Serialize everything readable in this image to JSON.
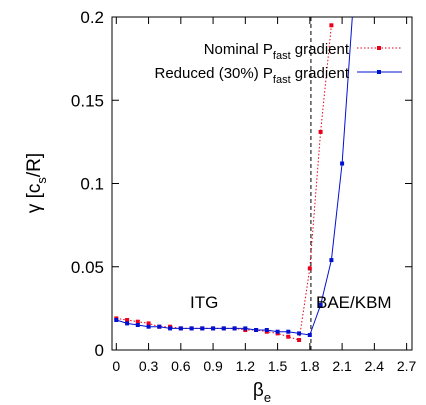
{
  "chart_data": {
    "type": "line",
    "x_ticks": [
      "0",
      "0.3",
      "0.6",
      "0.9",
      "1.2",
      "1.5",
      "1.8",
      "2.1",
      "2.4",
      "2.7"
    ],
    "y_ticks": [
      "0",
      "0.05",
      "0.1",
      "0.15",
      "0.2"
    ],
    "xlim": [
      -0.04,
      2.75
    ],
    "ylim": [
      0,
      0.2
    ],
    "xlabel_main": "β",
    "xlabel_sub": "e",
    "ylabel_pre": "γ [c",
    "ylabel_sub": "s",
    "ylabel_post": "/R]",
    "annotations": {
      "left_region": "ITG",
      "right_region": "BAE/KBM"
    },
    "vline_x": 1.81,
    "legend_placement": "top-right",
    "series": [
      {
        "legend_pre": "Nominal P",
        "legend_sub": "fast",
        "legend_post": " gradient",
        "color": "#e8001c",
        "style": "dotted",
        "x": [
          0.0,
          0.1,
          0.2,
          0.3,
          0.4,
          0.5,
          0.6,
          0.7,
          0.8,
          0.9,
          1.0,
          1.1,
          1.2,
          1.3,
          1.4,
          1.5,
          1.6,
          1.7,
          1.8,
          1.9,
          2.0
        ],
        "y": [
          0.019,
          0.018,
          0.017,
          0.016,
          0.014,
          0.014,
          0.013,
          0.013,
          0.013,
          0.013,
          0.013,
          0.013,
          0.012,
          0.012,
          0.011,
          0.01,
          0.008,
          0.006,
          0.049,
          0.131,
          0.195
        ]
      },
      {
        "legend_pre": "Reduced (30%) P",
        "legend_sub": "fast",
        "legend_post": " gradient",
        "color": "#0010d0",
        "style": "solid",
        "x": [
          0.0,
          0.1,
          0.2,
          0.3,
          0.4,
          0.5,
          0.6,
          0.7,
          0.8,
          0.9,
          1.0,
          1.1,
          1.2,
          1.3,
          1.4,
          1.5,
          1.6,
          1.7,
          1.8,
          1.9,
          2.0,
          2.1,
          2.2
        ],
        "y": [
          0.018,
          0.016,
          0.015,
          0.014,
          0.014,
          0.013,
          0.013,
          0.013,
          0.013,
          0.013,
          0.013,
          0.013,
          0.013,
          0.012,
          0.012,
          0.011,
          0.011,
          0.01,
          0.009,
          0.027,
          0.054,
          0.112,
          0.205
        ]
      }
    ]
  }
}
